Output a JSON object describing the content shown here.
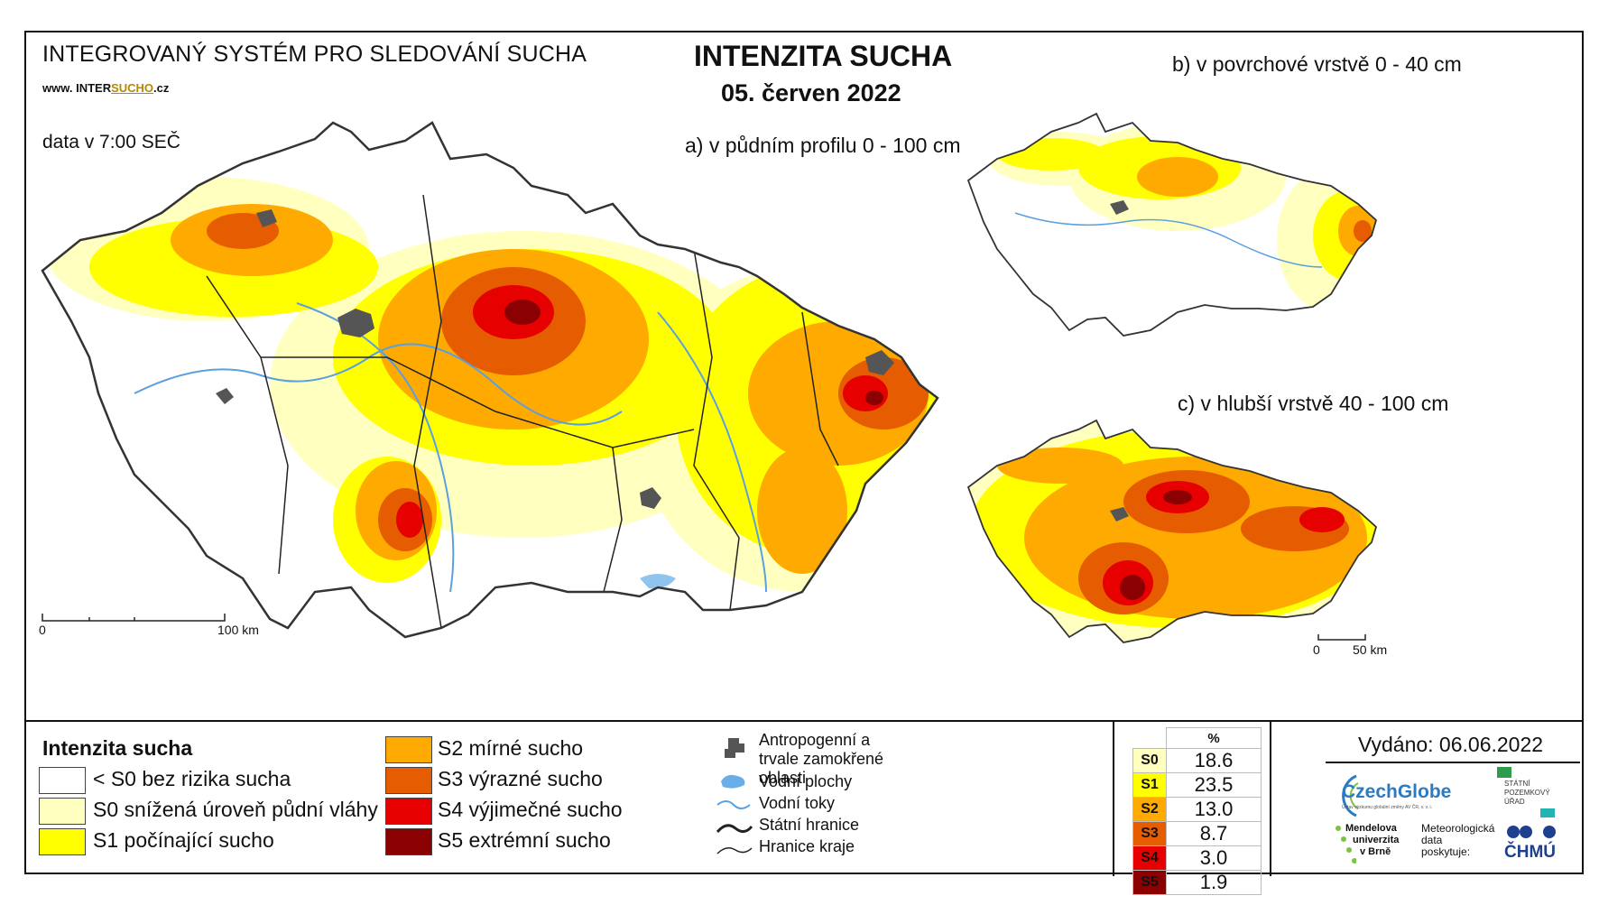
{
  "header": {
    "system_title": "INTEGROVANÝ SYSTÉM PRO SLEDOVÁNÍ SUCHA",
    "website_prefix": "www. INTER",
    "website_mid": "SUCHO",
    "website_suffix": ".cz",
    "data_time": "data v 7:00 SEČ",
    "main_title": "INTENZITA SUCHA",
    "date": "05. červen 2022"
  },
  "maps": {
    "a_title": "a) v půdním profilu 0 - 100 cm",
    "b_title": "b) v povrchové vrstvě 0 - 40 cm",
    "c_title": "c) v hlubší vrstvě 40 - 100 cm",
    "scale_a_start": "0",
    "scale_a_end": "100 km",
    "scale_small_start": "0",
    "scale_small_end": "50 km"
  },
  "legend": {
    "title": "Intenzita sucha",
    "classes": [
      {
        "label": "< S0 bez rizika sucha",
        "color": "#ffffff"
      },
      {
        "label": "S0 snížená úroveň půdní vláhy",
        "color": "#ffffc0"
      },
      {
        "label": "S1 počínající sucho",
        "color": "#ffff00"
      },
      {
        "label": "S2 mírné sucho",
        "color": "#ffaa00"
      },
      {
        "label": "S3 výrazné sucho",
        "color": "#e65c00"
      },
      {
        "label": "S4 výjimečné sucho",
        "color": "#e60000"
      },
      {
        "label": "S5 extrémní sucho",
        "color": "#8b0000"
      }
    ],
    "other": [
      {
        "label": "Antropogenní a trvale zamokřené oblasti",
        "icon": "urban-area-icon"
      },
      {
        "label": "Vodní plochy",
        "icon": "water-body-icon"
      },
      {
        "label": "Vodní toky",
        "icon": "river-icon"
      },
      {
        "label": "Státní hranice",
        "icon": "state-border-icon"
      },
      {
        "label": "Hranice kraje",
        "icon": "region-border-icon"
      }
    ]
  },
  "stats": {
    "header": "%",
    "rows": [
      {
        "cls": "S0",
        "value": "18.6",
        "color": "#ffffc0"
      },
      {
        "cls": "S1",
        "value": "23.5",
        "color": "#ffff00"
      },
      {
        "cls": "S2",
        "value": "13.0",
        "color": "#ffaa00"
      },
      {
        "cls": "S3",
        "value": "8.7",
        "color": "#e65c00"
      },
      {
        "cls": "S4",
        "value": "3.0",
        "color": "#e60000"
      },
      {
        "cls": "S5",
        "value": "1.9",
        "color": "#8b0000"
      }
    ]
  },
  "footer": {
    "issued": "Vydáno: 06.06.2022",
    "logo_czechglobe": "CzechGlobe",
    "logo_czechglobe_sub": "Ústav výzkumu globální změny AV ČR, v. v. i.",
    "logo_spu_1": "STÁTNÍ",
    "logo_spu_2": "POZEMKOVÝ",
    "logo_spu_3": "ÚŘAD",
    "logo_mendel_1": "Mendelova",
    "logo_mendel_2": "univerzita",
    "logo_mendel_3": "v Brně",
    "meteo_1": "Meteorologická",
    "meteo_2": "data",
    "meteo_3": "poskytuje:",
    "logo_chmu": "ČHMÚ"
  }
}
